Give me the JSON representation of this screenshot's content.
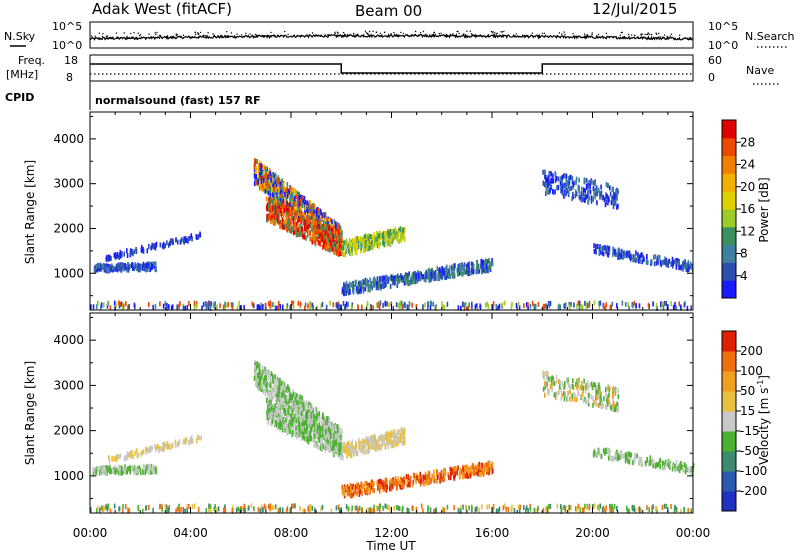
{
  "header": {
    "station": "Adak West (fitACF)",
    "beam": "Beam 00",
    "date": "12/Jul/2015"
  },
  "strips": {
    "nsky_label": "N.Sky",
    "nsearch_label": "N.Search",
    "freq_label": "Freq.",
    "freq_unit": "[MHz]",
    "nave_label": "Nave",
    "cpid_label": "CPID",
    "cpid_text": "normalsound (fast) 157 RF",
    "nsky_ticks": [
      "10^5",
      "10^0"
    ],
    "nsearch_ticks": [
      "10^5",
      "10^0"
    ],
    "freq_ticks": [
      "18",
      "8"
    ],
    "nave_ticks": [
      "60",
      "0"
    ]
  },
  "chart_data": [
    {
      "type": "heatmap",
      "parameter": "Power",
      "ylabel": "Slant Range [km]",
      "xlabel": "Time UT",
      "ylim": [
        180,
        4600
      ],
      "yticks": [
        1000,
        2000,
        3000,
        4000
      ],
      "xticks": [
        "00:00",
        "04:00",
        "08:00",
        "12:00",
        "16:00",
        "20:00",
        "00:00"
      ],
      "colorbar": {
        "label": "Power [dB]",
        "ticks": [
          "4",
          "8",
          "12",
          "16",
          "20",
          "24",
          "28"
        ],
        "colors": [
          "#1a1aff",
          "#2a4fb0",
          "#3f7fa0",
          "#3c9060",
          "#9ccc28",
          "#e0d000",
          "#f2b000",
          "#f08000",
          "#ec4a00",
          "#e00000"
        ]
      }
    },
    {
      "type": "heatmap",
      "parameter": "Velocity",
      "ylabel": "Slant Range [km]",
      "xlabel": "Time UT",
      "ylim": [
        180,
        4600
      ],
      "yticks": [
        1000,
        2000,
        3000,
        4000
      ],
      "xticks": [
        "00:00",
        "04:00",
        "08:00",
        "12:00",
        "16:00",
        "20:00",
        "00:00"
      ],
      "colorbar": {
        "label": "Velocity [m s^-1]",
        "ticks": [
          "200",
          "100",
          "50",
          "15",
          "-15",
          "-50",
          "-100",
          "-200"
        ],
        "colors": [
          "#2030c0",
          "#2a5ab0",
          "#3c8a70",
          "#4cb030",
          "#c8c8c8",
          "#e8c040",
          "#f0a020",
          "#f07010",
          "#e02000"
        ]
      }
    }
  ]
}
